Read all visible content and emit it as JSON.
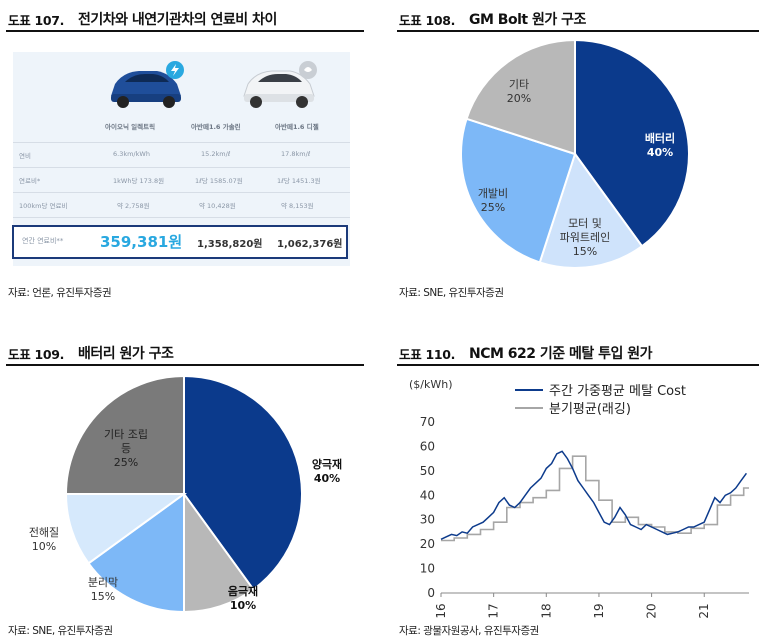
{
  "panels": [
    {
      "num": "도표 107.",
      "title": "전기차와 내연기관차의 연료비 차이",
      "source": "자료: 언론, 유진투자증권"
    },
    {
      "num": "도표 108.",
      "title": "GM Bolt 원가 구조",
      "source": "자료: SNE, 유진투자증권"
    },
    {
      "num": "도표 109.",
      "title": "배터리 원가 구조",
      "source": "자료: SNE, 유진투자증권"
    },
    {
      "num": "도표 110.",
      "title": "NCM 622 기준 메탈 투입 원가",
      "source": "자료: 광물자원공사, 유진투자증권"
    }
  ],
  "fuel_table": {
    "columns": [
      "아이오닉 일렉트릭",
      "아반떼1.6 가솔린",
      "아반떼1.6 디젤"
    ],
    "rows": [
      {
        "label": "연비",
        "values": [
          "6.3km/kWh",
          "15.2km/ℓ",
          "17.8km/ℓ"
        ]
      },
      {
        "label": "연료비*",
        "values": [
          "1kWh당 173.8원",
          "1ℓ당 1585.07원",
          "1ℓ당 1451.3원"
        ]
      },
      {
        "label": "100km당 연료비",
        "values": [
          "약 2,758원",
          "약 10,428원",
          "약 8,153원"
        ]
      }
    ],
    "highlight": {
      "label": "연간 연료비**",
      "values": [
        "359,381원",
        "1,358,820원",
        "1,062,376원"
      ]
    },
    "colors": {
      "ev_car": "#1f4e9a",
      "ice_car": "#e8ecef",
      "highlight_text": "#29a8e0"
    }
  },
  "chart_data": [
    {
      "type": "pie",
      "title": "GM Bolt 원가 구조",
      "slices": [
        {
          "label": "배터리",
          "value": 40,
          "display": "40%",
          "color": "#0b3a8c"
        },
        {
          "label": "모터 및 파워트레인",
          "value": 15,
          "display": "15%",
          "color": "#cfe3fb"
        },
        {
          "label": "개발비",
          "value": 25,
          "display": "25%",
          "color": "#7db8f7"
        },
        {
          "label": "기타",
          "value": 20,
          "display": "20%",
          "color": "#b8b8b8"
        }
      ]
    },
    {
      "type": "pie",
      "title": "배터리 원가 구조",
      "slices": [
        {
          "label": "양극재",
          "value": 40,
          "display": "40%",
          "color": "#0b3a8c"
        },
        {
          "label": "음극재",
          "value": 10,
          "display": "10%",
          "color": "#b8b8b8"
        },
        {
          "label": "분리막",
          "value": 15,
          "display": "15%",
          "color": "#7db8f7"
        },
        {
          "label": "전해질",
          "value": 10,
          "display": "10%",
          "color": "#d6e9fc"
        },
        {
          "label": "기타 조립 등",
          "value": 25,
          "display": "25%",
          "color": "#7a7a7a"
        }
      ]
    },
    {
      "type": "line",
      "title": "NCM 622 기준 메탈 투입 원가",
      "ylabel": "($/kWh)",
      "ylim": [
        0,
        70
      ],
      "yticks": [
        0,
        10,
        20,
        30,
        40,
        50,
        60,
        70
      ],
      "xlim": [
        2016,
        2021.85
      ],
      "xticks": [
        2016,
        2017,
        2018,
        2019,
        2020,
        2021
      ],
      "xticklabels": [
        "16",
        "17",
        "18",
        "19",
        "20",
        "21"
      ],
      "grid": false,
      "legend": "top-left",
      "series": [
        {
          "name": "주간 가중평균 메탈 Cost",
          "color": "#0d3b8c",
          "points": [
            [
              2016.0,
              22
            ],
            [
              2016.1,
              23
            ],
            [
              2016.2,
              24
            ],
            [
              2016.3,
              23.5
            ],
            [
              2016.4,
              25
            ],
            [
              2016.5,
              24.5
            ],
            [
              2016.6,
              27
            ],
            [
              2016.7,
              28
            ],
            [
              2016.8,
              29
            ],
            [
              2016.9,
              31
            ],
            [
              2017.0,
              33
            ],
            [
              2017.1,
              37
            ],
            [
              2017.2,
              39
            ],
            [
              2017.3,
              36
            ],
            [
              2017.4,
              35
            ],
            [
              2017.5,
              37
            ],
            [
              2017.6,
              40
            ],
            [
              2017.7,
              43
            ],
            [
              2017.8,
              45
            ],
            [
              2017.9,
              47
            ],
            [
              2018.0,
              51
            ],
            [
              2018.1,
              53
            ],
            [
              2018.2,
              57
            ],
            [
              2018.3,
              58
            ],
            [
              2018.4,
              55
            ],
            [
              2018.5,
              51
            ],
            [
              2018.6,
              46
            ],
            [
              2018.7,
              43
            ],
            [
              2018.8,
              40
            ],
            [
              2018.9,
              37
            ],
            [
              2019.0,
              33
            ],
            [
              2019.1,
              29
            ],
            [
              2019.2,
              28
            ],
            [
              2019.3,
              31
            ],
            [
              2019.4,
              35
            ],
            [
              2019.5,
              32
            ],
            [
              2019.6,
              28
            ],
            [
              2019.7,
              27
            ],
            [
              2019.8,
              26
            ],
            [
              2019.9,
              28
            ],
            [
              2020.0,
              27
            ],
            [
              2020.1,
              26
            ],
            [
              2020.2,
              25
            ],
            [
              2020.3,
              24
            ],
            [
              2020.4,
              24.5
            ],
            [
              2020.5,
              25
            ],
            [
              2020.6,
              26
            ],
            [
              2020.7,
              27
            ],
            [
              2020.8,
              27
            ],
            [
              2020.9,
              28
            ],
            [
              2021.0,
              29
            ],
            [
              2021.1,
              34
            ],
            [
              2021.2,
              39
            ],
            [
              2021.3,
              37
            ],
            [
              2021.4,
              40
            ],
            [
              2021.5,
              41
            ],
            [
              2021.6,
              43
            ],
            [
              2021.7,
              46
            ],
            [
              2021.8,
              49
            ]
          ]
        },
        {
          "name": "분기평균(래깅)",
          "color": "#a6a6a6",
          "points": [
            [
              2016.0,
              21.5
            ],
            [
              2016.25,
              21.5
            ],
            [
              2016.25,
              22.5
            ],
            [
              2016.5,
              22.5
            ],
            [
              2016.5,
              24
            ],
            [
              2016.75,
              24
            ],
            [
              2016.75,
              26
            ],
            [
              2017.0,
              26
            ],
            [
              2017.0,
              29
            ],
            [
              2017.25,
              29
            ],
            [
              2017.25,
              35
            ],
            [
              2017.5,
              35
            ],
            [
              2017.5,
              37
            ],
            [
              2017.75,
              37
            ],
            [
              2017.75,
              39
            ],
            [
              2018.0,
              39
            ],
            [
              2018.0,
              42
            ],
            [
              2018.25,
              42
            ],
            [
              2018.25,
              51
            ],
            [
              2018.5,
              51
            ],
            [
              2018.5,
              56
            ],
            [
              2018.75,
              56
            ],
            [
              2018.75,
              46
            ],
            [
              2019.0,
              46
            ],
            [
              2019.0,
              38
            ],
            [
              2019.25,
              38
            ],
            [
              2019.25,
              29
            ],
            [
              2019.5,
              29
            ],
            [
              2019.5,
              31
            ],
            [
              2019.75,
              31
            ],
            [
              2019.75,
              28
            ],
            [
              2020.0,
              28
            ],
            [
              2020.0,
              27
            ],
            [
              2020.25,
              27
            ],
            [
              2020.25,
              25
            ],
            [
              2020.5,
              25
            ],
            [
              2020.5,
              24.5
            ],
            [
              2020.75,
              24.5
            ],
            [
              2020.75,
              26.5
            ],
            [
              2021.0,
              26.5
            ],
            [
              2021.0,
              28
            ],
            [
              2021.25,
              28
            ],
            [
              2021.25,
              36
            ],
            [
              2021.5,
              36
            ],
            [
              2021.5,
              40
            ],
            [
              2021.75,
              40
            ],
            [
              2021.75,
              43
            ],
            [
              2021.85,
              43
            ]
          ]
        }
      ]
    }
  ]
}
